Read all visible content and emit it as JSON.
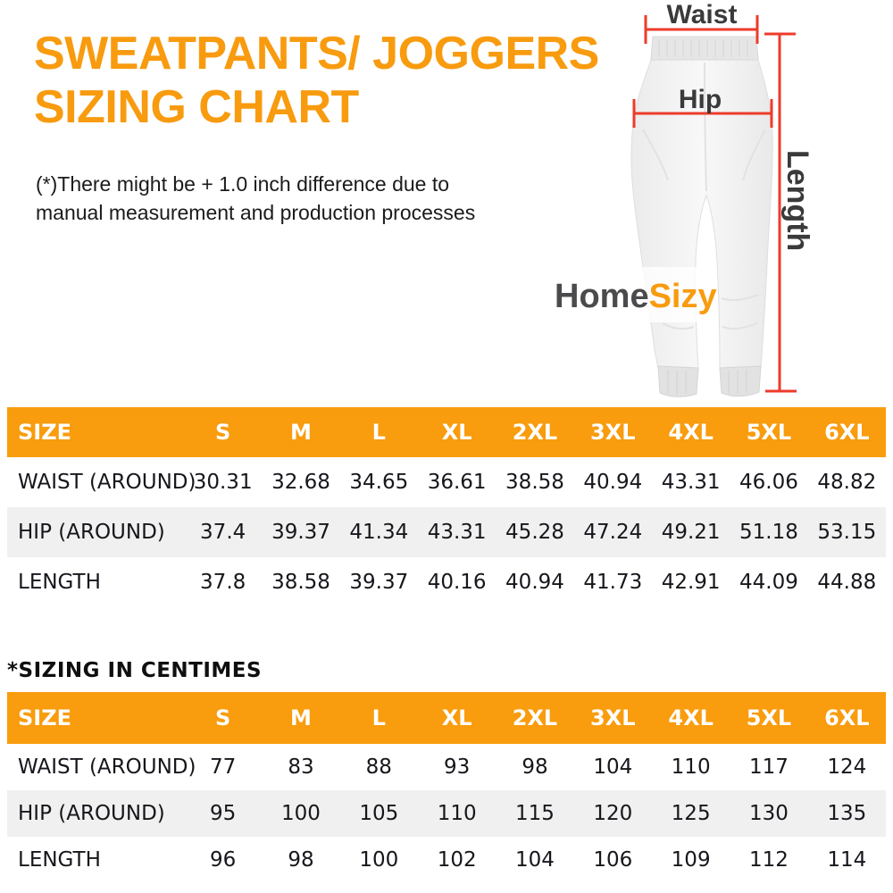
{
  "title": {
    "line1": "SWEATPANTS/ JOGGERS",
    "line2": "SIZING CHART"
  },
  "note": {
    "line1": "(*)There might be + 1.0 inch difference due to",
    "line2": "manual measurement and production processes"
  },
  "diagram": {
    "labels": {
      "waist": "Waist",
      "hip": "Hip",
      "length": "Length"
    },
    "watermark": {
      "part1": "Home",
      "part2": "Sizy"
    },
    "measure_line_color": "#ed3b2b",
    "label_color": "#3a3a3c"
  },
  "colors": {
    "accent_orange": "#f99c0d",
    "header_text": "#ffffff",
    "alt_row_gray": "#f1f0f0",
    "body_text": "#16161c"
  },
  "tables": {
    "inches": {
      "headers": [
        "SIZE",
        "S",
        "M",
        "L",
        "XL",
        "2XL",
        "3XL",
        "4XL",
        "5XL",
        "6XL"
      ],
      "rows": [
        {
          "label": "WAIST (AROUND)",
          "values": [
            "30.31",
            "32.68",
            "34.65",
            "36.61",
            "38.58",
            "40.94",
            "43.31",
            "46.06",
            "48.82"
          ]
        },
        {
          "label": "HIP (AROUND)",
          "values": [
            "37.4",
            "39.37",
            "41.34",
            "43.31",
            "45.28",
            "47.24",
            "49.21",
            "51.18",
            "53.15"
          ]
        },
        {
          "label": "LENGTH",
          "values": [
            "37.8",
            "38.58",
            "39.37",
            "40.16",
            "40.94",
            "41.73",
            "42.91",
            "44.09",
            "44.88"
          ]
        }
      ]
    },
    "centimeters": {
      "heading": "*SIZING IN CENTIMES",
      "headers": [
        "SIZE",
        "S",
        "M",
        "L",
        "XL",
        "2XL",
        "3XL",
        "4XL",
        "5XL",
        "6XL"
      ],
      "rows": [
        {
          "label": "WAIST (AROUND)",
          "values": [
            "77",
            "83",
            "88",
            "93",
            "98",
            "104",
            "110",
            "117",
            "124"
          ]
        },
        {
          "label": "HIP (AROUND)",
          "values": [
            "95",
            "100",
            "105",
            "110",
            "115",
            "120",
            "125",
            "130",
            "135"
          ]
        },
        {
          "label": "LENGTH",
          "values": [
            "96",
            "98",
            "100",
            "102",
            "104",
            "106",
            "109",
            "112",
            "114"
          ]
        }
      ]
    }
  }
}
